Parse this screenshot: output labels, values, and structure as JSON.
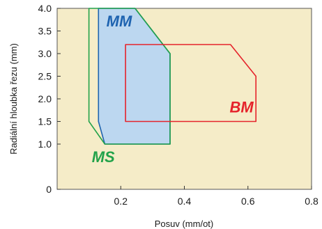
{
  "chart_data": {
    "type": "area",
    "xlabel": "Posuv (mm/ot)",
    "ylabel": "Radiální hloubka řezu (mm)",
    "xlim": [
      0,
      0.8
    ],
    "ylim": [
      0,
      4.0
    ],
    "x_ticks": [
      {
        "value": 0.2,
        "label": "0.2"
      },
      {
        "value": 0.4,
        "label": "0.4"
      },
      {
        "value": 0.6,
        "label": "0.6"
      },
      {
        "value": 0.8,
        "label": "0.8"
      }
    ],
    "y_ticks": [
      {
        "value": 0,
        "label": "0"
      },
      {
        "value": 1.0,
        "label": "1.0"
      },
      {
        "value": 1.5,
        "label": "1.5"
      },
      {
        "value": 2.0,
        "label": "2.0"
      },
      {
        "value": 2.5,
        "label": "2.5"
      },
      {
        "value": 3.0,
        "label": "3.0"
      },
      {
        "value": 3.5,
        "label": "3.5"
      },
      {
        "value": 4.0,
        "label": "4.0"
      }
    ],
    "plot_background": "#f5ecc8",
    "grid": false,
    "legend": "none",
    "regions": [
      {
        "name": "MM",
        "stroke": "#1e63b0",
        "fill": "#bcd7f0",
        "label_color": "#1e63b0",
        "label_pos": [
          0.195,
          3.6
        ],
        "points": [
          [
            0.13,
            4.0
          ],
          [
            0.245,
            4.0
          ],
          [
            0.355,
            3.0
          ],
          [
            0.355,
            1.0
          ],
          [
            0.15,
            1.0
          ],
          [
            0.13,
            1.5
          ]
        ]
      },
      {
        "name": "MS",
        "stroke": "#22a24a",
        "fill": "none",
        "label_color": "#22a24a",
        "label_pos": [
          0.145,
          0.6
        ],
        "points": [
          [
            0.1,
            4.0
          ],
          [
            0.245,
            4.0
          ],
          [
            0.355,
            3.0
          ],
          [
            0.355,
            1.0
          ],
          [
            0.15,
            1.0
          ],
          [
            0.1,
            1.5
          ]
        ]
      },
      {
        "name": "BM",
        "stroke": "#e5232b",
        "fill": "none",
        "label_color": "#e5232b",
        "label_pos": [
          0.58,
          1.7
        ],
        "points": [
          [
            0.215,
            3.2
          ],
          [
            0.545,
            3.2
          ],
          [
            0.625,
            2.5
          ],
          [
            0.625,
            1.5
          ],
          [
            0.215,
            1.5
          ]
        ]
      }
    ]
  }
}
